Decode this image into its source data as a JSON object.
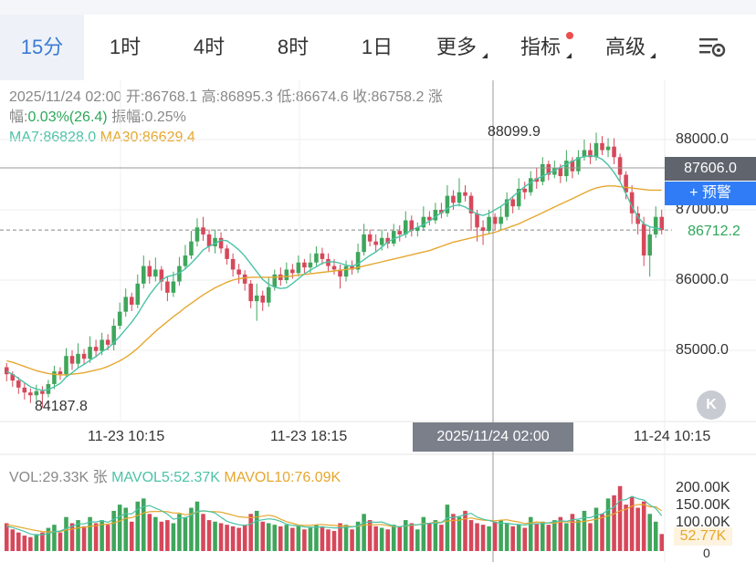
{
  "tabs": [
    {
      "label": "15分",
      "active": true
    },
    {
      "label": "1时"
    },
    {
      "label": "4时"
    },
    {
      "label": "8时"
    },
    {
      "label": "1日"
    },
    {
      "label": "更多"
    },
    {
      "label": "指标"
    },
    {
      "label": "高级"
    }
  ],
  "info": {
    "datetime": "2025/11/24 02:00",
    "open_label": "开:",
    "open": "86768.1",
    "high_label": "高:",
    "high": "86895.3",
    "low_label": "低:",
    "low": "86674.6",
    "close_label": "收:",
    "close": "86758.2",
    "change_label_1": "涨",
    "change_label_2": "幅:",
    "change": "0.03%(26.4)",
    "amp_label": "振幅:",
    "amp": "0.25%",
    "ma7": "MA7:86828.0",
    "ma30": "MA30:86629.4"
  },
  "price_axis": {
    "labels": [
      "88000.0",
      "87000.0",
      "86000.0",
      "85000.0"
    ],
    "values": [
      88000,
      87000,
      86000,
      85000
    ],
    "crosshair_price": "87606.0",
    "alert_label": "+ 预警",
    "last_price": "86712.2",
    "last_price_value": 86712.2,
    "high_mark": "88099.9",
    "low_mark": "84187.8"
  },
  "time_axis": {
    "labels": [
      "11-23 10:15",
      "11-23 18:15",
      "11-24 10:15"
    ],
    "crosshair_time": "2025/11/24 02:00"
  },
  "volume": {
    "vol": "VOL:29.33K 张",
    "mavol5": "MAVOL5:52.37K",
    "mavol10": "MAVOL10:76.09K",
    "axis_labels": [
      "200.00K",
      "150.00K",
      "100.00K",
      "0"
    ],
    "current": "52.77K"
  },
  "colors": {
    "up": "#3fa65c",
    "down": "#d6485a",
    "ma7": "#4bc3a6",
    "ma30": "#e6a72e",
    "accent": "#3b7bd6"
  },
  "chart_data": {
    "type": "candlestick",
    "title": "",
    "ylim": [
      84000,
      88300
    ],
    "x_labels": [
      "11-23 10:15",
      "11-23 18:15",
      "11-24 10:15"
    ],
    "candles": [
      [
        84760,
        84660,
        84820,
        84560
      ],
      [
        84660,
        84570,
        84700,
        84480
      ],
      [
        84570,
        84470,
        84620,
        84380
      ],
      [
        84470,
        84400,
        84540,
        84300
      ],
      [
        84400,
        84360,
        84460,
        84250
      ],
      [
        84360,
        84420,
        84510,
        84280
      ],
      [
        84420,
        84380,
        84490,
        84190
      ],
      [
        84380,
        84520,
        84580,
        84330
      ],
      [
        84520,
        84700,
        84780,
        84450
      ],
      [
        84700,
        84660,
        84760,
        84580
      ],
      [
        84660,
        84920,
        85030,
        84620
      ],
      [
        84920,
        84810,
        85000,
        84720
      ],
      [
        84810,
        84950,
        85100,
        84750
      ],
      [
        84950,
        84880,
        85020,
        84800
      ],
      [
        84880,
        85050,
        85200,
        84820
      ],
      [
        85050,
        84990,
        85150,
        84900
      ],
      [
        84990,
        85150,
        85250,
        84930
      ],
      [
        85150,
        85080,
        85230,
        85000
      ],
      [
        85080,
        85350,
        85450,
        85000
      ],
      [
        85350,
        85550,
        85680,
        85300
      ],
      [
        85550,
        85760,
        85880,
        85480
      ],
      [
        85760,
        85650,
        85820,
        85560
      ],
      [
        85650,
        85950,
        86080,
        85600
      ],
      [
        85950,
        86200,
        86350,
        85880
      ],
      [
        86200,
        86050,
        86280,
        85950
      ],
      [
        86050,
        86150,
        86320,
        85980
      ],
      [
        86150,
        85980,
        86200,
        85850
      ],
      [
        85980,
        85820,
        86060,
        85700
      ],
      [
        85820,
        85980,
        86120,
        85760
      ],
      [
        85980,
        86200,
        86330,
        85920
      ],
      [
        86200,
        86350,
        86500,
        86150
      ],
      [
        86350,
        86550,
        86700,
        86300
      ],
      [
        86550,
        86750,
        86880,
        86480
      ],
      [
        86750,
        86650,
        86900,
        86560
      ],
      [
        86650,
        86480,
        86720,
        86400
      ],
      [
        86480,
        86600,
        86720,
        86380
      ],
      [
        86600,
        86450,
        86680,
        86380
      ],
      [
        86450,
        86300,
        86500,
        86220
      ],
      [
        86300,
        86150,
        86380,
        86050
      ],
      [
        86150,
        86080,
        86230,
        85950
      ],
      [
        86080,
        85950,
        86140,
        85850
      ],
      [
        85950,
        85700,
        86000,
        85600
      ],
      [
        85700,
        85780,
        85950,
        85420
      ],
      [
        85780,
        85680,
        85850,
        85560
      ],
      [
        85680,
        85900,
        86040,
        85620
      ],
      [
        85900,
        86080,
        86150,
        85850
      ],
      [
        86080,
        86000,
        86180,
        85920
      ],
      [
        86000,
        86150,
        86250,
        85950
      ],
      [
        86150,
        86100,
        86230,
        86020
      ],
      [
        86100,
        86250,
        86350,
        86050
      ],
      [
        86250,
        86180,
        86300,
        86100
      ],
      [
        86180,
        86250,
        86380,
        86100
      ],
      [
        86250,
        86380,
        86480,
        86200
      ],
      [
        86380,
        86300,
        86460,
        86220
      ],
      [
        86300,
        86200,
        86380,
        86120
      ],
      [
        86200,
        86150,
        86300,
        86080
      ],
      [
        86150,
        86050,
        86220,
        85880
      ],
      [
        86050,
        86200,
        86280,
        85980
      ],
      [
        86200,
        86150,
        86280,
        86080
      ],
      [
        86150,
        86400,
        86520,
        86100
      ],
      [
        86400,
        86650,
        86800,
        86350
      ],
      [
        86650,
        86550,
        86720,
        86480
      ],
      [
        86550,
        86500,
        86650,
        86400
      ],
      [
        86500,
        86600,
        86720,
        86420
      ],
      [
        86600,
        86520,
        86680,
        86450
      ],
      [
        86520,
        86700,
        86800,
        86480
      ],
      [
        86700,
        86650,
        86780,
        86550
      ],
      [
        86650,
        86850,
        86980,
        86600
      ],
      [
        86850,
        86700,
        86920,
        86620
      ],
      [
        86700,
        86750,
        86820,
        86620
      ],
      [
        86750,
        86900,
        87050,
        86700
      ],
      [
        86900,
        86850,
        86980,
        86780
      ],
      [
        86850,
        87000,
        87100,
        86800
      ],
      [
        87000,
        86950,
        87100,
        86880
      ],
      [
        86950,
        87200,
        87350,
        86900
      ],
      [
        87200,
        87100,
        87280,
        87000
      ],
      [
        87100,
        87250,
        87450,
        87050
      ],
      [
        87250,
        87200,
        87350,
        87120
      ],
      [
        87200,
        86950,
        87250,
        86700
      ],
      [
        86950,
        86750,
        87000,
        86550
      ],
      [
        86750,
        86700,
        86850,
        86500
      ],
      [
        86700,
        86900,
        87000,
        86650
      ],
      [
        86900,
        86800,
        86950,
        86720
      ],
      [
        86800,
        86900,
        87050,
        86720
      ],
      [
        86900,
        87150,
        87250,
        86850
      ],
      [
        87150,
        87050,
        87200,
        86950
      ],
      [
        87050,
        87300,
        87450,
        87000
      ],
      [
        87300,
        87250,
        87400,
        87150
      ],
      [
        87250,
        87450,
        87550,
        87200
      ],
      [
        87450,
        87400,
        87600,
        87300
      ],
      [
        87400,
        87650,
        87750,
        87350
      ],
      [
        87650,
        87500,
        87700,
        87420
      ],
      [
        87500,
        87600,
        87700,
        87450
      ],
      [
        87600,
        87480,
        87650,
        87380
      ],
      [
        87480,
        87700,
        87850,
        87400
      ],
      [
        87700,
        87550,
        87750,
        87450
      ],
      [
        87550,
        87750,
        87850,
        87500
      ],
      [
        87750,
        87850,
        88000,
        87700
      ],
      [
        87850,
        87750,
        87950,
        87650
      ],
      [
        87750,
        87950,
        88099.9,
        87700
      ],
      [
        87950,
        87850,
        88050,
        87780
      ],
      [
        87850,
        87900,
        88020,
        87750
      ],
      [
        87900,
        87750,
        88020,
        87650
      ],
      [
        87750,
        87500,
        87800,
        87400
      ],
      [
        87500,
        87250,
        87550,
        87150
      ],
      [
        87250,
        86950,
        87350,
        86800
      ],
      [
        86950,
        86800,
        87050,
        86650
      ],
      [
        86800,
        86350,
        86900,
        86200
      ],
      [
        86350,
        86650,
        86750,
        86050
      ],
      [
        86650,
        86900,
        87050,
        86600
      ],
      [
        86900,
        86712.2,
        87000,
        86650
      ]
    ],
    "ma7": [
      84700,
      84660,
      84600,
      84540,
      84480,
      84450,
      84430,
      84440,
      84480,
      84530,
      84620,
      84680,
      84750,
      84800,
      84860,
      84910,
      84980,
      85030,
      85110,
      85200,
      85300,
      85400,
      85520,
      85660,
      85790,
      85900,
      86000,
      86050,
      86070,
      86100,
      86160,
      86240,
      86330,
      86430,
      86480,
      86520,
      86570,
      86560,
      86500,
      86430,
      86340,
      86230,
      86120,
      86010,
      85940,
      85900,
      85880,
      85890,
      85950,
      86020,
      86090,
      86140,
      86190,
      86240,
      86260,
      86260,
      86240,
      86210,
      86200,
      86230,
      86290,
      86350,
      86400,
      86470,
      86540,
      86590,
      86620,
      86660,
      86710,
      86750,
      86790,
      86840,
      86900,
      86960,
      87020,
      87060,
      87070,
      87040,
      86990,
      86940,
      86920,
      86950,
      87000,
      87050,
      87110,
      87190,
      87260,
      87330,
      87390,
      87440,
      87480,
      87520,
      87560,
      87610,
      87650,
      87690,
      87730,
      87760,
      87770,
      87760,
      87720,
      87640,
      87530,
      87400,
      87230,
      87050,
      86900,
      86800,
      86760,
      86740,
      86730
    ],
    "ma30": [
      84850,
      84830,
      84800,
      84770,
      84740,
      84710,
      84690,
      84670,
      84660,
      84650,
      84650,
      84660,
      84670,
      84680,
      84700,
      84720,
      84740,
      84770,
      84810,
      84850,
      84900,
      84960,
      85030,
      85110,
      85190,
      85270,
      85340,
      85410,
      85480,
      85540,
      85610,
      85670,
      85730,
      85790,
      85840,
      85890,
      85930,
      85970,
      86000,
      86020,
      86030,
      86040,
      86040,
      86040,
      86040,
      86040,
      86050,
      86050,
      86060,
      86070,
      86080,
      86090,
      86100,
      86110,
      86120,
      86130,
      86140,
      86150,
      86160,
      86180,
      86200,
      86220,
      86240,
      86260,
      86280,
      86300,
      86320,
      86340,
      86360,
      86380,
      86400,
      86420,
      86450,
      86480,
      86510,
      86540,
      86560,
      86580,
      86600,
      86620,
      86640,
      86660,
      86680,
      86710,
      86740,
      86770,
      86800,
      86840,
      86880,
      86920,
      86960,
      87000,
      87040,
      87080,
      87120,
      87160,
      87200,
      87240,
      87280,
      87310,
      87330,
      87340,
      87340,
      87330,
      87320,
      87310,
      87300,
      87290,
      87280,
      87280,
      87280
    ],
    "volumes": [
      90,
      70,
      60,
      50,
      45,
      55,
      60,
      75,
      85,
      60,
      110,
      90,
      100,
      80,
      110,
      90,
      100,
      85,
      130,
      150,
      140,
      95,
      160,
      170,
      120,
      110,
      95,
      100,
      90,
      120,
      110,
      140,
      160,
      120,
      100,
      95,
      90,
      85,
      80,
      75,
      85,
      120,
      130,
      95,
      90,
      85,
      80,
      85,
      75,
      80,
      70,
      75,
      85,
      80,
      70,
      65,
      90,
      85,
      70,
      95,
      120,
      100,
      80,
      75,
      70,
      85,
      80,
      100,
      90,
      70,
      110,
      90,
      100,
      85,
      150,
      120,
      110,
      130,
      100,
      90,
      85,
      80,
      95,
      100,
      90,
      80,
      85,
      75,
      110,
      90,
      95,
      85,
      100,
      110,
      90,
      120,
      100,
      130,
      90,
      140,
      120,
      170,
      180,
      210,
      150,
      175,
      140,
      160,
      120,
      95,
      55
    ],
    "mavol5": [
      80,
      76,
      70,
      63,
      55,
      52,
      53,
      57,
      62,
      65,
      73,
      80,
      88,
      88,
      94,
      94,
      98,
      93,
      103,
      113,
      121,
      120,
      135,
      143,
      147,
      139,
      131,
      119,
      103,
      107,
      107,
      116,
      128,
      130,
      128,
      123,
      109,
      96,
      90,
      85,
      83,
      88,
      98,
      101,
      104,
      102,
      96,
      87,
      83,
      81,
      78,
      77,
      77,
      78,
      76,
      75,
      75,
      77,
      78,
      81,
      92,
      94,
      93,
      94,
      87,
      81,
      78,
      82,
      85,
      85,
      87,
      90,
      90,
      92,
      107,
      109,
      112,
      118,
      122,
      110,
      103,
      99,
      93,
      90,
      90,
      87,
      86,
      84,
      88,
      88,
      89,
      91,
      95,
      98,
      96,
      101,
      103,
      108,
      108,
      116,
      120,
      132,
      142,
      164,
      166,
      177,
      169,
      165,
      149,
      138,
      114
    ],
    "mavol10": [
      85,
      82,
      78,
      74,
      70,
      66,
      63,
      62,
      62,
      63,
      68,
      71,
      75,
      77,
      80,
      82,
      86,
      87,
      91,
      97,
      106,
      108,
      115,
      123,
      127,
      128,
      128,
      127,
      123,
      123,
      117,
      120,
      126,
      130,
      128,
      127,
      126,
      121,
      116,
      111,
      109,
      108,
      110,
      113,
      116,
      112,
      103,
      95,
      90,
      84,
      83,
      83,
      85,
      86,
      84,
      83,
      81,
      81,
      79,
      80,
      84,
      85,
      85,
      86,
      82,
      79,
      79,
      81,
      83,
      85,
      89,
      90,
      93,
      93,
      97,
      99,
      100,
      104,
      107,
      103,
      100,
      99,
      98,
      100,
      101,
      97,
      94,
      89,
      91,
      94,
      92,
      91,
      90,
      94,
      95,
      93,
      94,
      96,
      99,
      103,
      108,
      114,
      120,
      130,
      135,
      145,
      150,
      150,
      143,
      143,
      130
    ],
    "vol_ylim": [
      0,
      230
    ]
  }
}
